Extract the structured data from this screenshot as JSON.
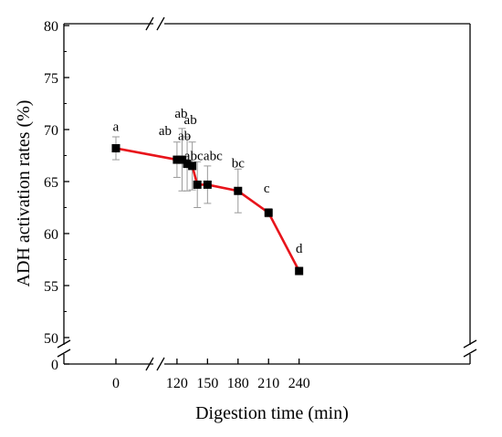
{
  "chart_data": {
    "type": "line",
    "title": "",
    "xlabel": "Digestion time (min)",
    "ylabel": "ADH activation rates (%)",
    "x_ticks": [
      0,
      120,
      150,
      180,
      210,
      240
    ],
    "y_ticks": [
      0,
      50,
      55,
      60,
      65,
      70,
      75,
      80
    ],
    "ylim": [
      50,
      80
    ],
    "x_axis_break": [
      0,
      120
    ],
    "y_axis_break": [
      0,
      50
    ],
    "grid": false,
    "series": [
      {
        "color": "#e8141b",
        "marker": "square",
        "x": [
          0,
          120,
          125,
          130,
          135,
          140,
          150,
          180,
          210,
          240
        ],
        "y": [
          68.2,
          67.1,
          67.1,
          66.7,
          66.5,
          64.7,
          64.7,
          64.1,
          62.0,
          56.4
        ],
        "error": [
          1.1,
          1.7,
          3.0,
          2.6,
          2.3,
          2.2,
          1.8,
          2.1,
          0.4,
          0.2
        ],
        "labels": [
          "a",
          "ab",
          "ab",
          "ab",
          "ab",
          "abc",
          "abc",
          "bc",
          "c",
          "d"
        ]
      }
    ]
  }
}
